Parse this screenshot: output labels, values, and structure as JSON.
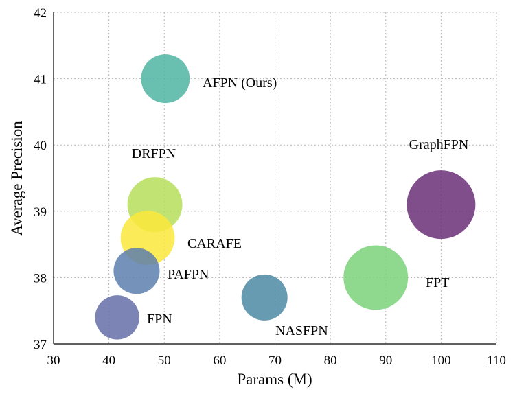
{
  "chart_data": {
    "type": "scatter",
    "subtype": "bubble",
    "xlabel": "Params (M)",
    "ylabel": "Average Precision",
    "xlim": [
      30,
      110
    ],
    "ylim": [
      37,
      42
    ],
    "xticks": [
      30,
      40,
      50,
      60,
      70,
      80,
      90,
      100,
      110
    ],
    "yticks": [
      37,
      38,
      39,
      40,
      41,
      42
    ],
    "grid": true,
    "points": [
      {
        "label": "AFPN (Ours)",
        "x": 50.2,
        "y": 41.0,
        "size": 50.2,
        "color": "#4fb5a3"
      },
      {
        "label": "DRFPN",
        "x": 48.3,
        "y": 39.1,
        "size": 64.0,
        "color": "#b5de5a"
      },
      {
        "label": "CARAFE",
        "x": 47.0,
        "y": 38.6,
        "size": 62.0,
        "color": "#fbe83c"
      },
      {
        "label": "PAFPN",
        "x": 45.0,
        "y": 38.1,
        "size": 45.0,
        "color": "#5d7fae"
      },
      {
        "label": "FPN",
        "x": 41.5,
        "y": 37.4,
        "size": 41.5,
        "color": "#646ea8"
      },
      {
        "label": "NASFPN",
        "x": 68.1,
        "y": 37.7,
        "size": 45.0,
        "color": "#4b8aa3"
      },
      {
        "label": "FPT",
        "x": 88.2,
        "y": 38.0,
        "size": 88.2,
        "color": "#7ad27a"
      },
      {
        "label": "GraphFPN",
        "x": 100.0,
        "y": 39.1,
        "size": 100.0,
        "color": "#6a2f77"
      }
    ]
  }
}
